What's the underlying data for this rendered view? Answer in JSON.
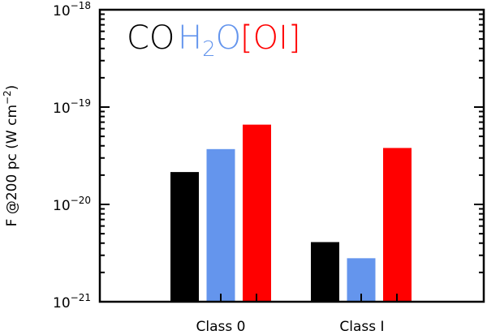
{
  "chart_data": {
    "type": "bar",
    "title": "",
    "xlabel": "",
    "ylabel": "F @200 pc (W cm^-2)",
    "ylabel_parts": {
      "main": "F @200 pc (W cm",
      "exp": "−2",
      "close": ")"
    },
    "yscale": "log",
    "ylim": [
      1e-21,
      1e-18
    ],
    "yticks": [
      {
        "base": "10",
        "exp": "−21",
        "value": 1e-21
      },
      {
        "base": "10",
        "exp": "−20",
        "value": 1e-20
      },
      {
        "base": "10",
        "exp": "−19",
        "value": 1e-19
      },
      {
        "base": "10",
        "exp": "−18",
        "value": 1e-18
      }
    ],
    "categories": [
      "Class 0",
      "Class I"
    ],
    "series": [
      {
        "name": "CO",
        "color": "#000000",
        "values": [
          2.15e-20,
          4.1e-21
        ]
      },
      {
        "name": "H2O",
        "color": "#6495ED",
        "values": [
          3.7e-20,
          2.8e-21
        ]
      },
      {
        "name": "[OI]",
        "color": "#FF0000",
        "values": [
          6.6e-20,
          3.8e-20
        ]
      }
    ],
    "legend": {
      "placement": "top-left",
      "entries": [
        {
          "text": "CO",
          "color": "#000000"
        },
        {
          "text_main": "H",
          "sub": "2",
          "text_end": "O",
          "color": "#6495ED"
        },
        {
          "text": "[OI]",
          "color": "#FF0000"
        }
      ]
    },
    "grid": false
  }
}
